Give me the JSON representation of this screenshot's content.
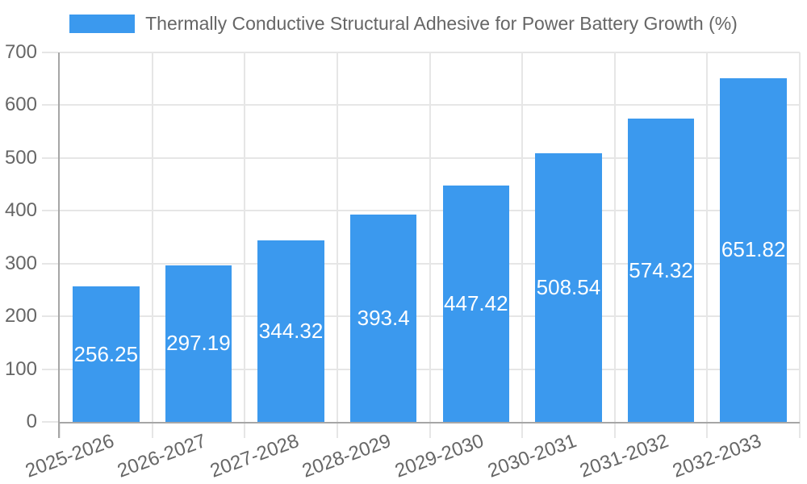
{
  "chart_data": {
    "type": "bar",
    "title": "Thermally Conductive Structural Adhesive for Power Battery Growth (%)",
    "legend": {
      "label": "Thermally Conductive Structural Adhesive for Power Battery Growth (%)",
      "position": "top"
    },
    "categories": [
      "2025-2026",
      "2026-2027",
      "2027-2028",
      "2028-2029",
      "2029-2030",
      "2030-2031",
      "2031-2032",
      "2032-2033"
    ],
    "series": [
      {
        "name": "Thermally Conductive Structural Adhesive for Power Battery Growth (%)",
        "values": [
          256.25,
          297.19,
          344.32,
          393.4,
          447.42,
          508.54,
          574.32,
          651.82
        ]
      }
    ],
    "value_labels": [
      "256.25",
      "297.19",
      "344.32",
      "393.4",
      "447.42",
      "508.54",
      "574.32",
      "651.82"
    ],
    "xlabel": "",
    "ylabel": "",
    "ylim": [
      0,
      700
    ],
    "y_tick_step": 100,
    "y_tick_labels": [
      "0",
      "100",
      "200",
      "300",
      "400",
      "500",
      "600",
      "700"
    ],
    "grid": "on",
    "colors": {
      "bar": "#3B99EE",
      "value_label": "#FFFFFF",
      "axis_text": "#666666",
      "gridline": "#E6E6E6",
      "axis_line": "#A6A6A6",
      "background": "#FFFFFF"
    }
  }
}
